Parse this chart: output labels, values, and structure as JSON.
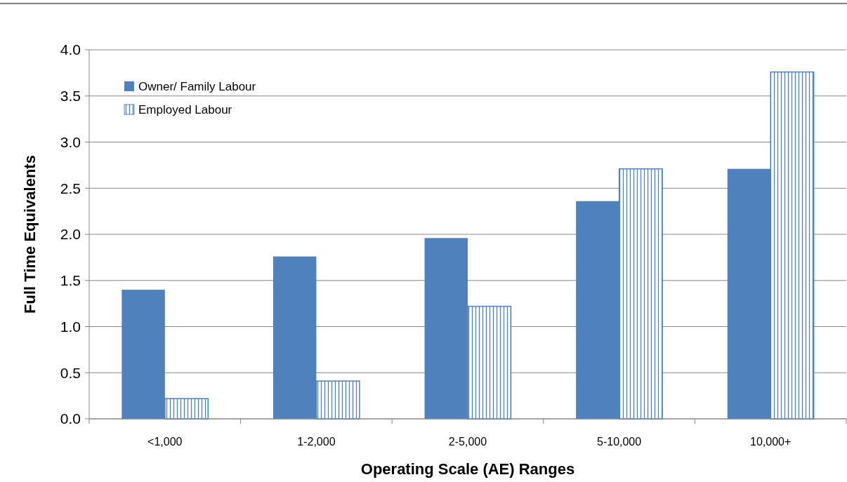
{
  "chart_data": {
    "type": "bar",
    "xlabel": "Operating Scale (AE) Ranges",
    "ylabel": "Full Time Equivalents",
    "categories": [
      "<1,000",
      "1-2,000",
      "2-5,000",
      "5-10,000",
      "10,000+"
    ],
    "series": [
      {
        "name": "Owner/ Family Labour",
        "color": "#4f81bd",
        "values": [
          1.4,
          1.76,
          1.96,
          2.36,
          2.71
        ]
      },
      {
        "name": "Employed Labour",
        "color": "#4f81bd",
        "values": [
          0.22,
          0.41,
          1.22,
          2.71,
          3.76
        ]
      }
    ],
    "ylim": [
      0,
      4
    ],
    "yticks": [
      {
        "value": 0,
        "label": "0.0"
      },
      {
        "value": 0.5,
        "label": "0.5"
      },
      {
        "value": 1,
        "label": "1.0"
      },
      {
        "value": 1.5,
        "label": "1.5"
      },
      {
        "value": 2,
        "label": "2.0"
      },
      {
        "value": 2.5,
        "label": "2.5"
      },
      {
        "value": 3,
        "label": "3.0"
      },
      {
        "value": 3.5,
        "label": "3.5"
      },
      {
        "value": 4,
        "label": "4.0"
      }
    ],
    "grid": "y",
    "legend": "top left"
  }
}
